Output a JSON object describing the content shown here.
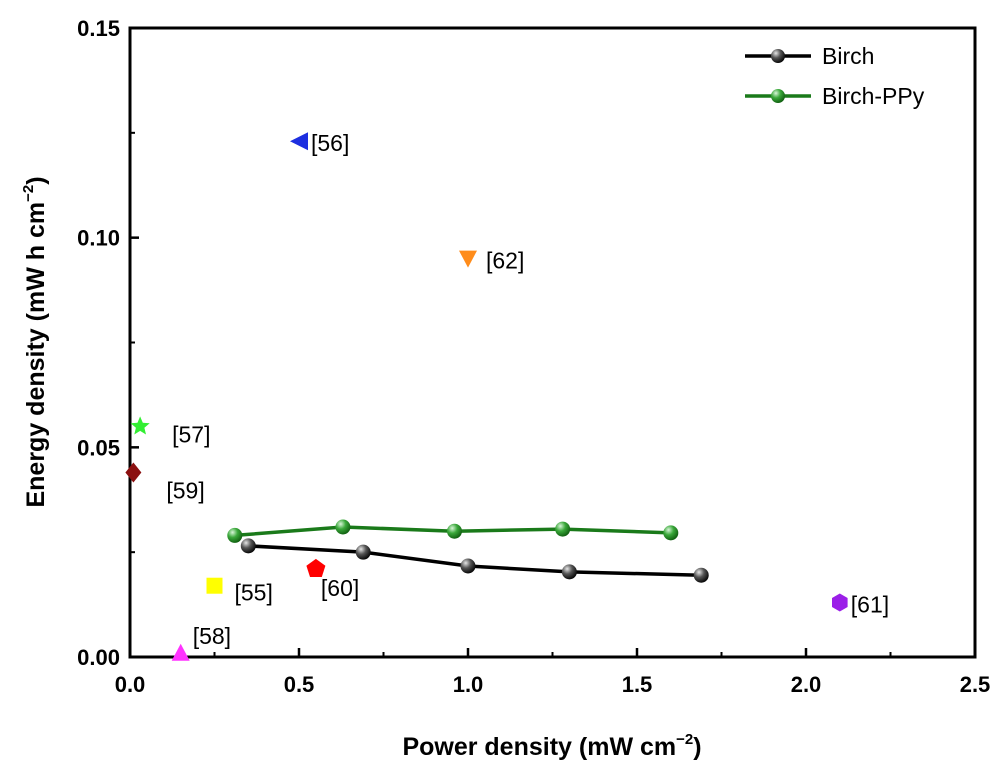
{
  "chart_data": {
    "type": "scatter",
    "xlabel": "Power density (mW cm⁻²)",
    "xlabel_main": "Power density",
    "xlabel_unit": "(mW cm",
    "xlabel_sup": "−2",
    "xlabel_close": ")",
    "ylabel_main": "Energy density",
    "ylabel_unit": "(mW h cm",
    "ylabel_sup": "−2",
    "ylabel_close": ")",
    "xlim": [
      0,
      2.5
    ],
    "ylim": [
      0,
      0.15
    ],
    "xticks": [
      0.0,
      0.5,
      1.0,
      1.5,
      2.0,
      2.5
    ],
    "xtick_labels": [
      "0.0",
      "0.5",
      "1.0",
      "1.5",
      "2.0",
      "2.5"
    ],
    "yticks": [
      0.0,
      0.05,
      0.1,
      0.15
    ],
    "ytick_labels": [
      "0.00",
      "0.05",
      "0.10",
      "0.15"
    ],
    "grid": false,
    "legend_position": "top-right",
    "series": [
      {
        "name": "Birch",
        "color": "#000000",
        "marker": "sphere",
        "x": [
          0.35,
          0.69,
          1.0,
          1.3,
          1.69
        ],
        "y": [
          0.0265,
          0.025,
          0.0217,
          0.0203,
          0.0195
        ]
      },
      {
        "name": "Birch-PPy",
        "color": "#1a7a1a",
        "marker": "sphere",
        "x": [
          0.31,
          0.63,
          0.96,
          1.28,
          1.6
        ],
        "y": [
          0.029,
          0.031,
          0.03,
          0.0305,
          0.0296
        ]
      }
    ],
    "references": [
      {
        "label": "[56]",
        "x": 0.5,
        "y": 0.123,
        "marker": "triangle-left",
        "color": "#1d2fe0"
      },
      {
        "label": "[62]",
        "x": 1.0,
        "y": 0.095,
        "marker": "triangle-down",
        "color": "#ff8c1a"
      },
      {
        "label": "[57]",
        "x": 0.03,
        "y": 0.055,
        "marker": "star",
        "color": "#33ee33"
      },
      {
        "label": "[59]",
        "x": 0.01,
        "y": 0.044,
        "marker": "diamond",
        "color": "#8b1010"
      },
      {
        "label": "[55]",
        "x": 0.25,
        "y": 0.017,
        "marker": "square",
        "color": "#ffff00"
      },
      {
        "label": "[60]",
        "x": 0.55,
        "y": 0.021,
        "marker": "pentagon",
        "color": "#ff0000"
      },
      {
        "label": "[58]",
        "x": 0.15,
        "y": 0.001,
        "marker": "triangle-up",
        "color": "#ff33ff"
      },
      {
        "label": "[61]",
        "x": 2.1,
        "y": 0.013,
        "marker": "hexagon",
        "color": "#9b1fe8"
      }
    ]
  }
}
